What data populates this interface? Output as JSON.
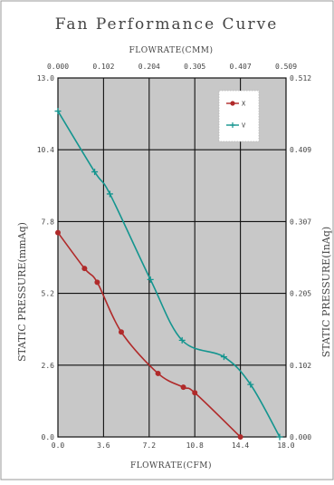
{
  "chart_data": {
    "type": "line",
    "title": "Fan Performance Curve",
    "xlabel_bottom": "FLOWRATE(CFM)",
    "xlabel_top": "FLOWRATE(CMM)",
    "ylabel_left": "STATIC PRESSURE(mmAq)",
    "ylabel_right": "STATIC PRESSURE(InAq)",
    "xlim": [
      0,
      18
    ],
    "ylim": [
      0,
      13
    ],
    "x_ticks_bottom": [
      "0.0",
      "3.6",
      "7.2",
      "10.8",
      "14.4",
      "18.0"
    ],
    "x_ticks_top": [
      "0.000",
      "0.102",
      "0.204",
      "0.305",
      "0.407",
      "0.509"
    ],
    "y_ticks_left": [
      "0.0",
      "2.6",
      "5.2",
      "7.8",
      "10.4",
      "13.0"
    ],
    "y_ticks_right": [
      "0.000",
      "0.102",
      "0.205",
      "0.307",
      "0.409",
      "0.512"
    ],
    "grid": true,
    "legend_position": "top-right",
    "series": [
      {
        "name": "X",
        "color": "#b02a2a",
        "marker": "dot",
        "x": [
          0.0,
          2.1,
          3.1,
          5.0,
          7.9,
          9.9,
          10.8,
          14.4
        ],
        "y": [
          7.4,
          6.1,
          5.6,
          3.8,
          2.3,
          1.8,
          1.6,
          0.0
        ]
      },
      {
        "name": "V",
        "color": "#14958f",
        "marker": "plus",
        "x": [
          0.0,
          2.9,
          4.1,
          7.3,
          9.8,
          13.1,
          15.2,
          17.5
        ],
        "y": [
          11.8,
          9.6,
          8.8,
          5.7,
          3.5,
          2.9,
          1.9,
          0.0
        ]
      }
    ]
  }
}
